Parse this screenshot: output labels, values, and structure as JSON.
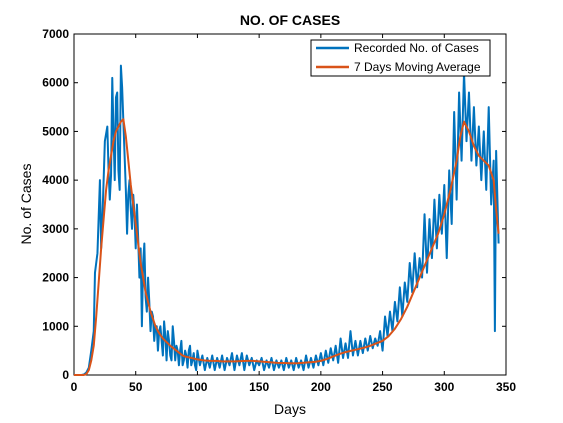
{
  "chart_data": {
    "type": "line",
    "title": "NO. OF CASES",
    "xlabel": "Days",
    "ylabel": "No. of Cases",
    "xlim": [
      0,
      350
    ],
    "ylim": [
      0,
      7000
    ],
    "x_ticks": [
      0,
      50,
      100,
      150,
      200,
      250,
      300,
      350
    ],
    "y_ticks": [
      0,
      1000,
      2000,
      3000,
      4000,
      5000,
      6000,
      7000
    ],
    "x_tick_labels": [
      "0",
      "50",
      "100",
      "150",
      "200",
      "250",
      "300",
      "350"
    ],
    "y_tick_labels": [
      "0",
      "1000",
      "2000",
      "3000",
      "4000",
      "5000",
      "6000",
      "7000"
    ],
    "grid": false,
    "legend_position": "top-right",
    "series": [
      {
        "name": "Recorded No. of Cases",
        "color": "#0072BD",
        "points": [
          [
            0,
            0
          ],
          [
            2,
            0
          ],
          [
            4,
            0
          ],
          [
            6,
            0
          ],
          [
            8,
            10
          ],
          [
            10,
            50
          ],
          [
            12,
            150
          ],
          [
            14,
            500
          ],
          [
            16,
            900
          ],
          [
            17,
            2100
          ],
          [
            19,
            2500
          ],
          [
            21,
            4000
          ],
          [
            22,
            2600
          ],
          [
            23,
            3200
          ],
          [
            25,
            4800
          ],
          [
            27,
            5100
          ],
          [
            28,
            4200
          ],
          [
            29,
            3600
          ],
          [
            30,
            4100
          ],
          [
            31,
            6100
          ],
          [
            32,
            5000
          ],
          [
            33,
            4000
          ],
          [
            34,
            5700
          ],
          [
            35,
            5800
          ],
          [
            36,
            4200
          ],
          [
            37,
            3800
          ],
          [
            38,
            6350
          ],
          [
            39,
            5900
          ],
          [
            40,
            5200
          ],
          [
            41,
            4500
          ],
          [
            42,
            3800
          ],
          [
            43,
            2900
          ],
          [
            44,
            3700
          ],
          [
            45,
            4000
          ],
          [
            46,
            3400
          ],
          [
            47,
            3000
          ],
          [
            48,
            3700
          ],
          [
            49,
            3300
          ],
          [
            50,
            2600
          ],
          [
            51,
            3500
          ],
          [
            52,
            2800
          ],
          [
            53,
            2000
          ],
          [
            54,
            2600
          ],
          [
            55,
            1000
          ],
          [
            56,
            2300
          ],
          [
            57,
            2700
          ],
          [
            58,
            1600
          ],
          [
            59,
            1300
          ],
          [
            60,
            2000
          ],
          [
            61,
            1500
          ],
          [
            62,
            900
          ],
          [
            63,
            1300
          ],
          [
            64,
            1200
          ],
          [
            65,
            700
          ],
          [
            66,
            1000
          ],
          [
            67,
            1000
          ],
          [
            68,
            500
          ],
          [
            69,
            900
          ],
          [
            70,
            1000
          ],
          [
            71,
            700
          ],
          [
            72,
            400
          ],
          [
            73,
            1100
          ],
          [
            74,
            800
          ],
          [
            75,
            300
          ],
          [
            76,
            900
          ],
          [
            77,
            700
          ],
          [
            78,
            400
          ],
          [
            79,
            300
          ],
          [
            80,
            1000
          ],
          [
            81,
            700
          ],
          [
            82,
            300
          ],
          [
            83,
            600
          ],
          [
            84,
            500
          ],
          [
            85,
            200
          ],
          [
            86,
            500
          ],
          [
            87,
            700
          ],
          [
            88,
            200
          ],
          [
            89,
            300
          ],
          [
            90,
            500
          ],
          [
            91,
            400
          ],
          [
            92,
            150
          ],
          [
            93,
            500
          ],
          [
            94,
            600
          ],
          [
            95,
            200
          ],
          [
            96,
            300
          ],
          [
            97,
            450
          ],
          [
            98,
            200
          ],
          [
            99,
            100
          ],
          [
            100,
            500
          ],
          [
            102,
            200
          ],
          [
            104,
            400
          ],
          [
            106,
            100
          ],
          [
            108,
            350
          ],
          [
            110,
            150
          ],
          [
            112,
            400
          ],
          [
            114,
            100
          ],
          [
            116,
            350
          ],
          [
            118,
            150
          ],
          [
            120,
            400
          ],
          [
            122,
            100
          ],
          [
            124,
            350
          ],
          [
            126,
            200
          ],
          [
            128,
            450
          ],
          [
            130,
            100
          ],
          [
            132,
            400
          ],
          [
            134,
            200
          ],
          [
            136,
            450
          ],
          [
            138,
            100
          ],
          [
            140,
            400
          ],
          [
            142,
            200
          ],
          [
            144,
            350
          ],
          [
            146,
            100
          ],
          [
            148,
            300
          ],
          [
            150,
            200
          ],
          [
            152,
            350
          ],
          [
            154,
            100
          ],
          [
            156,
            300
          ],
          [
            158,
            150
          ],
          [
            160,
            350
          ],
          [
            162,
            100
          ],
          [
            164,
            300
          ],
          [
            166,
            150
          ],
          [
            168,
            300
          ],
          [
            170,
            100
          ],
          [
            172,
            350
          ],
          [
            174,
            150
          ],
          [
            176,
            300
          ],
          [
            178,
            100
          ],
          [
            180,
            350
          ],
          [
            182,
            150
          ],
          [
            184,
            300
          ],
          [
            186,
            100
          ],
          [
            188,
            400
          ],
          [
            190,
            150
          ],
          [
            192,
            350
          ],
          [
            194,
            150
          ],
          [
            196,
            400
          ],
          [
            198,
            200
          ],
          [
            200,
            450
          ],
          [
            202,
            200
          ],
          [
            204,
            500
          ],
          [
            206,
            250
          ],
          [
            208,
            550
          ],
          [
            210,
            300
          ],
          [
            212,
            600
          ],
          [
            214,
            250
          ],
          [
            216,
            750
          ],
          [
            218,
            350
          ],
          [
            220,
            650
          ],
          [
            222,
            350
          ],
          [
            224,
            900
          ],
          [
            226,
            400
          ],
          [
            228,
            700
          ],
          [
            230,
            400
          ],
          [
            232,
            700
          ],
          [
            234,
            450
          ],
          [
            236,
            750
          ],
          [
            238,
            500
          ],
          [
            240,
            800
          ],
          [
            242,
            550
          ],
          [
            244,
            750
          ],
          [
            246,
            600
          ],
          [
            248,
            900
          ],
          [
            250,
            500
          ],
          [
            252,
            1200
          ],
          [
            254,
            800
          ],
          [
            256,
            1300
          ],
          [
            258,
            900
          ],
          [
            260,
            1500
          ],
          [
            262,
            1100
          ],
          [
            264,
            1800
          ],
          [
            266,
            1200
          ],
          [
            268,
            1900
          ],
          [
            270,
            1500
          ],
          [
            272,
            2300
          ],
          [
            274,
            1700
          ],
          [
            276,
            2500
          ],
          [
            278,
            1800
          ],
          [
            280,
            2400
          ],
          [
            282,
            2000
          ],
          [
            284,
            3300
          ],
          [
            286,
            2100
          ],
          [
            288,
            3200
          ],
          [
            290,
            2400
          ],
          [
            292,
            3600
          ],
          [
            294,
            2600
          ],
          [
            296,
            3700
          ],
          [
            298,
            2900
          ],
          [
            300,
            3900
          ],
          [
            302,
            2400
          ],
          [
            304,
            4200
          ],
          [
            306,
            3100
          ],
          [
            308,
            5400
          ],
          [
            310,
            3600
          ],
          [
            312,
            5800
          ],
          [
            314,
            4400
          ],
          [
            316,
            6200
          ],
          [
            318,
            4800
          ],
          [
            320,
            5800
          ],
          [
            322,
            4400
          ],
          [
            324,
            5500
          ],
          [
            326,
            4300
          ],
          [
            328,
            5100
          ],
          [
            330,
            4000
          ],
          [
            332,
            5000
          ],
          [
            334,
            3800
          ],
          [
            336,
            5500
          ],
          [
            338,
            3500
          ],
          [
            340,
            4400
          ],
          [
            341,
            900
          ],
          [
            342,
            4600
          ],
          [
            344,
            2700
          ]
        ]
      },
      {
        "name": "7 Days Moving Average",
        "color": "#D95319",
        "points": [
          [
            0,
            0
          ],
          [
            8,
            0
          ],
          [
            10,
            20
          ],
          [
            12,
            100
          ],
          [
            14,
            300
          ],
          [
            16,
            600
          ],
          [
            18,
            1200
          ],
          [
            20,
            1900
          ],
          [
            22,
            2600
          ],
          [
            24,
            3200
          ],
          [
            26,
            3800
          ],
          [
            28,
            4200
          ],
          [
            30,
            4500
          ],
          [
            32,
            4800
          ],
          [
            34,
            5000
          ],
          [
            36,
            5100
          ],
          [
            38,
            5200
          ],
          [
            40,
            5250
          ],
          [
            42,
            4900
          ],
          [
            44,
            4400
          ],
          [
            46,
            3900
          ],
          [
            48,
            3500
          ],
          [
            50,
            3100
          ],
          [
            52,
            2700
          ],
          [
            54,
            2300
          ],
          [
            56,
            2000
          ],
          [
            58,
            1700
          ],
          [
            60,
            1500
          ],
          [
            62,
            1300
          ],
          [
            64,
            1150
          ],
          [
            66,
            1000
          ],
          [
            68,
            900
          ],
          [
            70,
            820
          ],
          [
            72,
            750
          ],
          [
            74,
            700
          ],
          [
            76,
            650
          ],
          [
            78,
            600
          ],
          [
            80,
            560
          ],
          [
            82,
            520
          ],
          [
            84,
            480
          ],
          [
            86,
            440
          ],
          [
            88,
            400
          ],
          [
            90,
            380
          ],
          [
            95,
            350
          ],
          [
            100,
            320
          ],
          [
            105,
            300
          ],
          [
            110,
            290
          ],
          [
            115,
            290
          ],
          [
            120,
            280
          ],
          [
            125,
            280
          ],
          [
            130,
            280
          ],
          [
            135,
            285
          ],
          [
            140,
            290
          ],
          [
            145,
            290
          ],
          [
            150,
            280
          ],
          [
            155,
            270
          ],
          [
            160,
            260
          ],
          [
            165,
            250
          ],
          [
            170,
            245
          ],
          [
            175,
            240
          ],
          [
            180,
            240
          ],
          [
            185,
            250
          ],
          [
            190,
            260
          ],
          [
            195,
            270
          ],
          [
            200,
            290
          ],
          [
            205,
            330
          ],
          [
            210,
            380
          ],
          [
            215,
            430
          ],
          [
            220,
            470
          ],
          [
            225,
            500
          ],
          [
            230,
            530
          ],
          [
            235,
            560
          ],
          [
            240,
            600
          ],
          [
            245,
            650
          ],
          [
            250,
            700
          ],
          [
            255,
            800
          ],
          [
            260,
            950
          ],
          [
            265,
            1150
          ],
          [
            270,
            1400
          ],
          [
            275,
            1700
          ],
          [
            280,
            2000
          ],
          [
            285,
            2300
          ],
          [
            290,
            2600
          ],
          [
            295,
            2900
          ],
          [
            300,
            3300
          ],
          [
            305,
            3800
          ],
          [
            310,
            4400
          ],
          [
            313,
            4900
          ],
          [
            316,
            5200
          ],
          [
            320,
            5000
          ],
          [
            324,
            4700
          ],
          [
            328,
            4500
          ],
          [
            332,
            4400
          ],
          [
            336,
            4300
          ],
          [
            340,
            4000
          ],
          [
            342,
            3400
          ],
          [
            344,
            2900
          ]
        ]
      }
    ]
  }
}
